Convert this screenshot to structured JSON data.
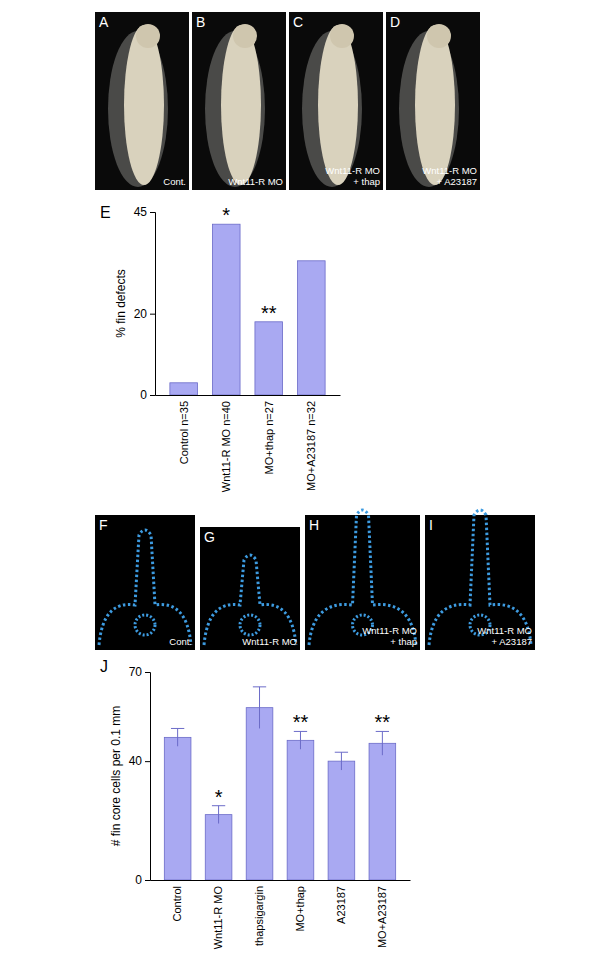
{
  "chart_data": [
    {
      "type": "bar",
      "title": "E",
      "y_label": "% fin defects",
      "categories": [
        "Control n=35",
        "Wnt11-R MO n=40",
        "MO+thap n=27",
        "MO+A23187 n=32"
      ],
      "values": [
        3,
        42,
        18,
        33
      ],
      "color": "#a9a9f2",
      "ylim": [
        0,
        45
      ],
      "yticks": [
        0,
        20,
        45
      ],
      "annotations": [
        {
          "text": "*",
          "category": "Wnt11-R MO n=40"
        },
        {
          "text": "**",
          "category": "MO+thap n=27"
        }
      ]
    },
    {
      "type": "bar",
      "title": "J",
      "y_label": "# fin core cells per 0.1 mm",
      "categories": [
        "Control",
        "Wnt11-R MO",
        "thapsigargin",
        "MO+thap",
        "A23187",
        "MO+A23187"
      ],
      "values": [
        48,
        22,
        58,
        47,
        40,
        46
      ],
      "errors": [
        3,
        3,
        7,
        3,
        3,
        4
      ],
      "color": "#a9a9f2",
      "ylim": [
        0,
        70
      ],
      "yticks": [
        0,
        40,
        70
      ],
      "annotations": [
        {
          "text": "*",
          "category": "Wnt11-R MO"
        },
        {
          "text": "**",
          "category": "MO+thap"
        },
        {
          "text": "**",
          "category": "MO+A23187"
        }
      ]
    }
  ],
  "photo_panels": [
    {
      "label": "A",
      "caption": [
        "Cont."
      ]
    },
    {
      "label": "B",
      "caption": [
        "Wnt11-R MO"
      ]
    },
    {
      "label": "C",
      "caption": [
        "Wnt11-R MO",
        "+ thap"
      ]
    },
    {
      "label": "D",
      "caption": [
        "Wnt11-R MO",
        "+ A23187"
      ]
    }
  ],
  "section_panels": [
    {
      "label": "F",
      "caption": [
        "Cont."
      ]
    },
    {
      "label": "G",
      "caption": [
        "Wnt11-R MO"
      ]
    },
    {
      "label": "H",
      "caption": [
        "Wnt11-R MO",
        "+ thap"
      ]
    },
    {
      "label": "I",
      "caption": [
        "Wnt11-R MO",
        "+ A23187"
      ]
    }
  ]
}
